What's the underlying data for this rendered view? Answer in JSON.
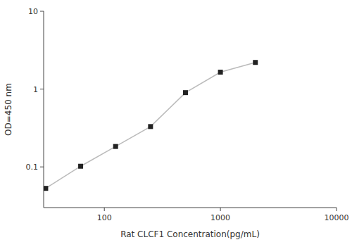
{
  "chart_data": {
    "type": "line",
    "x": [
      31.25,
      62.5,
      125,
      250,
      500,
      1000,
      2000
    ],
    "values": [
      0.053,
      0.102,
      0.183,
      0.33,
      0.9,
      1.65,
      2.2
    ],
    "xlabel": "Rat CLCF1 Concentration(pg/mL)",
    "ylabel": "OD=450 nm",
    "xlim": [
      30,
      10000
    ],
    "ylim": [
      0.03,
      10
    ],
    "xticks": [
      100,
      1000,
      10000
    ],
    "yticks": [
      0.1,
      1,
      10
    ],
    "log": true,
    "grid": false,
    "marker": "square",
    "color": "#bbbbbb",
    "colors": [
      "#222222",
      "#222222",
      "#222222",
      "#222222",
      "#222222",
      "#222222",
      "#222222"
    ]
  }
}
